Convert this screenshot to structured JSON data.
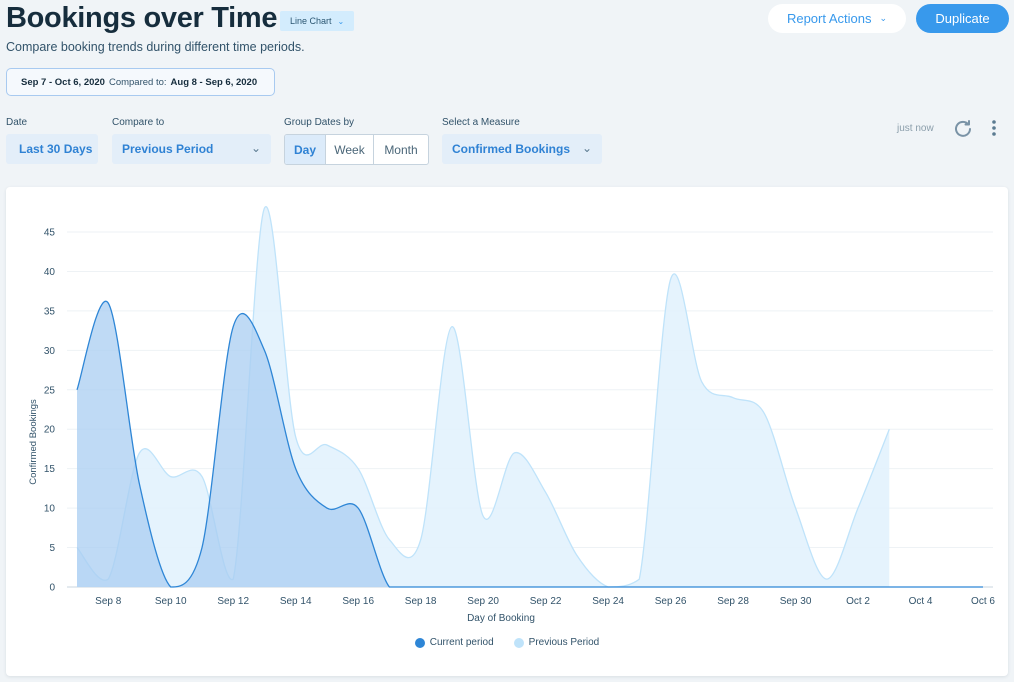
{
  "header": {
    "title": "Bookings over Time",
    "chart_type_label": "Line Chart",
    "subtitle": "Compare booking trends during different time periods.",
    "report_actions_label": "Report Actions",
    "duplicate_label": "Duplicate"
  },
  "date_range": {
    "current": "Sep 7 - Oct 6, 2020",
    "compared_label": "Compared to:",
    "compared": "Aug 8 - Sep 6, 2020"
  },
  "filters": {
    "date_label": "Date",
    "date_value": "Last 30 Days",
    "compare_label": "Compare to",
    "compare_value": "Previous Period",
    "group_label": "Group Dates by",
    "group_options": [
      "Day",
      "Week",
      "Month"
    ],
    "group_selected": "Day",
    "measure_label": "Select a Measure",
    "measure_value": "Confirmed Bookings",
    "updated": "just now"
  },
  "icons": {
    "refresh": "refresh-icon",
    "more": "more-vertical-icon",
    "chevron": "chevron-down-icon"
  },
  "colors": {
    "accent": "#3899ec",
    "current_fill": "#a9cdf2",
    "current_line": "#2e86d6",
    "previous_fill": "#e2f2fd",
    "previous_line": "#bfe3fa"
  },
  "chart_data": {
    "type": "area",
    "xlabel": "Day of Booking",
    "ylabel": "Confirmed Bookings",
    "ylim": [
      0,
      45
    ],
    "yticks": [
      0,
      5,
      10,
      15,
      20,
      25,
      30,
      35,
      40,
      45
    ],
    "x": [
      "Sep 7",
      "Sep 8",
      "Sep 9",
      "Sep 10",
      "Sep 11",
      "Sep 12",
      "Sep 13",
      "Sep 14",
      "Sep 15",
      "Sep 16",
      "Sep 17",
      "Sep 18",
      "Sep 19",
      "Sep 20",
      "Sep 21",
      "Sep 22",
      "Sep 23",
      "Sep 24",
      "Sep 25",
      "Sep 26",
      "Sep 27",
      "Sep 28",
      "Sep 29",
      "Sep 30",
      "Oct 1",
      "Oct 2",
      "Oct 3",
      "Oct 4",
      "Oct 5",
      "Oct 6"
    ],
    "xtick_labels": [
      "Sep 8",
      "Sep 10",
      "Sep 12",
      "Sep 14",
      "Sep 16",
      "Sep 18",
      "Sep 20",
      "Sep 22",
      "Sep 24",
      "Sep 26",
      "Sep 28",
      "Sep 30",
      "Oct 2",
      "Oct 4",
      "Oct 6"
    ],
    "series": [
      {
        "name": "Previous Period",
        "values": [
          5,
          1,
          17,
          14,
          14,
          1,
          48,
          19,
          18,
          15,
          6,
          6,
          33,
          9,
          17,
          12,
          4,
          0,
          1,
          39,
          26,
          24,
          22,
          10,
          1,
          10,
          20,
          null,
          null,
          null
        ]
      },
      {
        "name": "Current period",
        "values": [
          25,
          36,
          13,
          0,
          5,
          33,
          30,
          15,
          10,
          10,
          0,
          0,
          0,
          0,
          0,
          0,
          0,
          0,
          0,
          0,
          0,
          0,
          0,
          0,
          0,
          0,
          0,
          0,
          0,
          0
        ]
      }
    ],
    "legend_position": "bottom",
    "grid": true
  }
}
